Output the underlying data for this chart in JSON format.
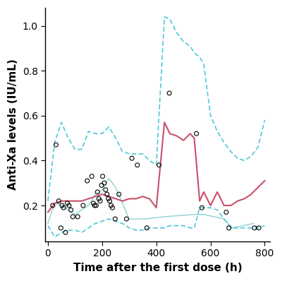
{
  "title": "",
  "xlabel": "Time after the first dose (h)",
  "ylabel": "Anti-Xa levels (IU/mL)",
  "xlim": [
    -10,
    820
  ],
  "ylim": [
    0.04,
    1.08
  ],
  "yticks": [
    0.2,
    0.4,
    0.6,
    0.8,
    1.0
  ],
  "xticks": [
    0,
    200,
    400,
    600,
    800
  ],
  "scatter_x": [
    18,
    30,
    40,
    48,
    52,
    58,
    65,
    72,
    78,
    85,
    92,
    110,
    130,
    145,
    162,
    168,
    172,
    178,
    183,
    188,
    193,
    198,
    202,
    208,
    213,
    218,
    223,
    228,
    233,
    238,
    248,
    262,
    290,
    310,
    330,
    365,
    410,
    448,
    548,
    568,
    658,
    668,
    762,
    778
  ],
  "scatter_y": [
    0.2,
    0.47,
    0.22,
    0.1,
    0.2,
    0.19,
    0.08,
    0.21,
    0.2,
    0.18,
    0.15,
    0.15,
    0.2,
    0.31,
    0.33,
    0.21,
    0.2,
    0.2,
    0.26,
    0.23,
    0.22,
    0.29,
    0.33,
    0.3,
    0.27,
    0.25,
    0.23,
    0.22,
    0.2,
    0.19,
    0.14,
    0.25,
    0.14,
    0.41,
    0.38,
    0.1,
    0.38,
    0.7,
    0.52,
    0.19,
    0.17,
    0.1,
    0.1,
    0.1
  ],
  "upper_dashed_x": [
    0,
    25,
    50,
    75,
    100,
    125,
    150,
    175,
    200,
    225,
    250,
    275,
    300,
    325,
    350,
    375,
    400,
    430,
    450,
    475,
    500,
    525,
    540,
    560,
    575,
    600,
    625,
    650,
    675,
    700,
    725,
    750,
    775,
    800
  ],
  "upper_dashed_y": [
    0.22,
    0.48,
    0.57,
    0.5,
    0.45,
    0.45,
    0.53,
    0.52,
    0.52,
    0.55,
    0.5,
    0.44,
    0.43,
    0.43,
    0.43,
    0.4,
    0.38,
    1.04,
    1.03,
    0.97,
    0.93,
    0.91,
    0.88,
    0.86,
    0.83,
    0.6,
    0.53,
    0.48,
    0.44,
    0.41,
    0.4,
    0.42,
    0.46,
    0.58
  ],
  "lower_dashed_x": [
    0,
    25,
    50,
    75,
    100,
    125,
    150,
    175,
    200,
    225,
    250,
    275,
    300,
    325,
    350,
    375,
    400,
    430,
    450,
    475,
    500,
    525,
    540,
    560,
    575,
    600,
    625,
    650,
    675,
    700,
    725,
    750,
    775,
    800
  ],
  "lower_dashed_y": [
    0.11,
    0.06,
    0.08,
    0.09,
    0.09,
    0.08,
    0.1,
    0.12,
    0.13,
    0.14,
    0.13,
    0.12,
    0.1,
    0.09,
    0.09,
    0.1,
    0.1,
    0.1,
    0.11,
    0.11,
    0.11,
    0.1,
    0.1,
    0.19,
    0.19,
    0.19,
    0.18,
    0.14,
    0.1,
    0.1,
    0.1,
    0.1,
    0.1,
    0.11
  ],
  "median_solid_x": [
    0,
    25,
    50,
    75,
    100,
    125,
    150,
    175,
    200,
    225,
    250,
    275,
    300,
    325,
    350,
    375,
    400,
    430,
    450,
    475,
    500,
    525,
    540,
    560,
    575,
    600,
    625,
    650,
    675,
    700,
    725,
    750,
    775,
    800
  ],
  "median_solid_y": [
    0.17,
    0.21,
    0.22,
    0.22,
    0.22,
    0.22,
    0.23,
    0.24,
    0.25,
    0.24,
    0.23,
    0.22,
    0.23,
    0.23,
    0.24,
    0.23,
    0.19,
    0.57,
    0.52,
    0.51,
    0.49,
    0.52,
    0.5,
    0.22,
    0.26,
    0.2,
    0.26,
    0.2,
    0.2,
    0.22,
    0.23,
    0.25,
    0.28,
    0.31
  ],
  "teal_solid_x": [
    0,
    25,
    50,
    100,
    150,
    175,
    200,
    225,
    250,
    300,
    360,
    430,
    540,
    575,
    650,
    680,
    760
  ],
  "teal_solid_y": [
    0.12,
    0.21,
    0.2,
    0.16,
    0.2,
    0.25,
    0.27,
    0.32,
    0.28,
    0.14,
    0.14,
    0.15,
    0.16,
    0.16,
    0.14,
    0.1,
    0.12
  ],
  "scatter_color": "#000000",
  "upper_dashed_color": "#50C8D8",
  "lower_dashed_color": "#50C8D8",
  "median_solid_color": "#C8506A",
  "teal_solid_color": "#80CECE",
  "background_color": "#ffffff",
  "xlabel_fontsize": 11,
  "ylabel_fontsize": 11,
  "tick_fontsize": 10
}
